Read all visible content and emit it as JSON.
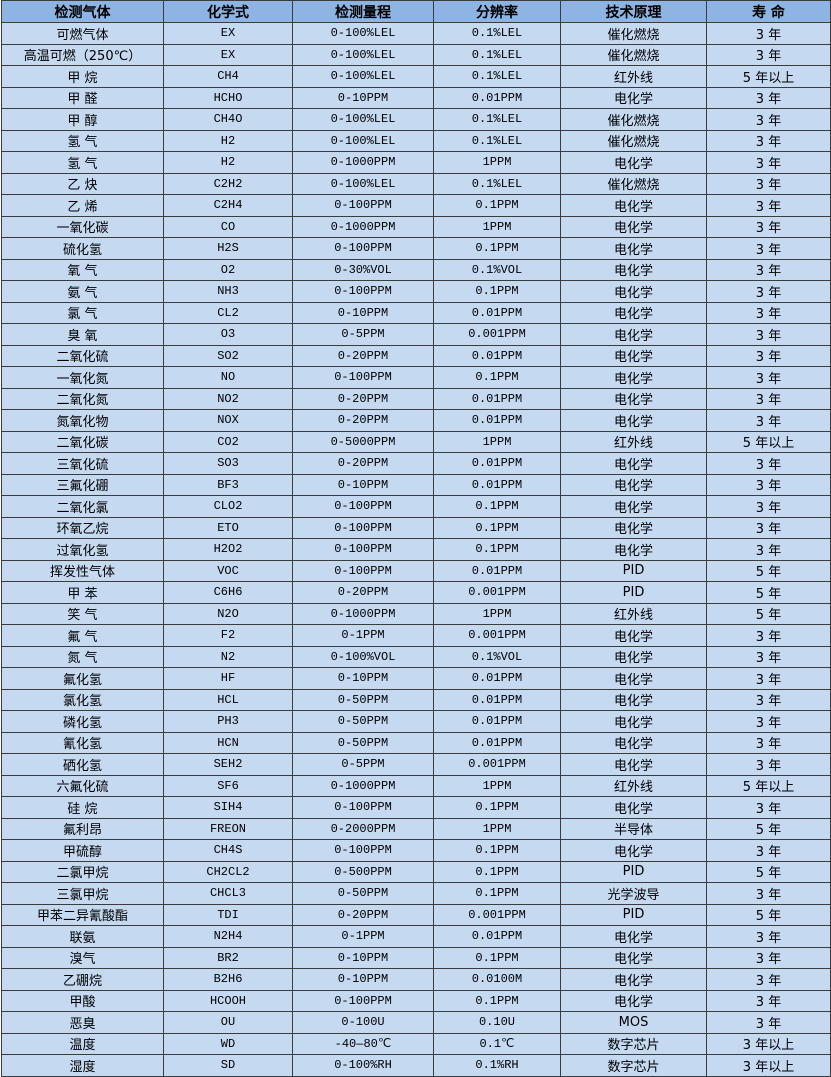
{
  "colors": {
    "header_bg": "#8db4e2",
    "row_bg": "#c5d9f1",
    "border": "#3c3c3c"
  },
  "headers": [
    "检测气体",
    "化学式",
    "检测量程",
    "分辨率",
    "技术原理",
    "寿 命"
  ],
  "rows": [
    [
      "可燃气体",
      "EX",
      "0-100%LEL",
      "0.1%LEL",
      "催化燃烧",
      "3 年"
    ],
    [
      "高温可燃（250℃）",
      "EX",
      "0-100%LEL",
      "0.1%LEL",
      "催化燃烧",
      "3 年"
    ],
    [
      "甲 烷",
      "CH4",
      "0-100%LEL",
      "0.1%LEL",
      "红外线",
      "5 年以上"
    ],
    [
      "甲 醛",
      "HCHO",
      "0-10PPM",
      "0.01PPM",
      "电化学",
      "3 年"
    ],
    [
      "甲 醇",
      "CH4O",
      "0-100%LEL",
      "0.1%LEL",
      "催化燃烧",
      "3 年"
    ],
    [
      "氢 气",
      "H2",
      "0-100%LEL",
      "0.1%LEL",
      "催化燃烧",
      "3 年"
    ],
    [
      "氢 气",
      "H2",
      "0-1000PPM",
      "1PPM",
      "电化学",
      "3 年"
    ],
    [
      "乙 炔",
      "C2H2",
      "0-100%LEL",
      "0.1%LEL",
      "催化燃烧",
      "3 年"
    ],
    [
      "乙 烯",
      "C2H4",
      "0-100PPM",
      "0.1PPM",
      "电化学",
      "3 年"
    ],
    [
      "一氧化碳",
      "CO",
      "0-1000PPM",
      "1PPM",
      "电化学",
      "3 年"
    ],
    [
      "硫化氢",
      "H2S",
      "0-100PPM",
      "0.1PPM",
      "电化学",
      "3 年"
    ],
    [
      "氧 气",
      "O2",
      "0-30%VOL",
      "0.1%VOL",
      "电化学",
      "3 年"
    ],
    [
      "氨 气",
      "NH3",
      "0-100PPM",
      "0.1PPM",
      "电化学",
      "3 年"
    ],
    [
      "氯 气",
      "CL2",
      "0-10PPM",
      "0.01PPM",
      "电化学",
      "3 年"
    ],
    [
      "臭 氧",
      "O3",
      "0-5PPM",
      "0.001PPM",
      "电化学",
      "3 年"
    ],
    [
      "二氧化硫",
      "SO2",
      "0-20PPM",
      "0.01PPM",
      "电化学",
      "3 年"
    ],
    [
      "一氧化氮",
      "NO",
      "0-100PPM",
      "0.1PPM",
      "电化学",
      "3 年"
    ],
    [
      "二氧化氮",
      "NO2",
      "0-20PPM",
      "0.01PPM",
      "电化学",
      "3 年"
    ],
    [
      "氮氧化物",
      "NOX",
      "0-20PPM",
      "0.01PPM",
      "电化学",
      "3 年"
    ],
    [
      "二氧化碳",
      "CO2",
      "0-5000PPM",
      "1PPM",
      "红外线",
      "5 年以上"
    ],
    [
      "三氧化硫",
      "SO3",
      "0-20PPM",
      "0.01PPM",
      "电化学",
      "3 年"
    ],
    [
      "三氟化硼",
      "BF3",
      "0-10PPM",
      "0.01PPM",
      "电化学",
      "3 年"
    ],
    [
      "二氧化氯",
      "CLO2",
      "0-100PPM",
      "0.1PPM",
      "电化学",
      "3 年"
    ],
    [
      "环氧乙烷",
      "ETO",
      "0-100PPM",
      "0.1PPM",
      "电化学",
      "3 年"
    ],
    [
      "过氧化氢",
      "H2O2",
      "0-100PPM",
      "0.1PPM",
      "电化学",
      "3 年"
    ],
    [
      "挥发性气体",
      "VOC",
      "0-100PPM",
      "0.01PPM",
      "PID",
      "5 年"
    ],
    [
      "甲 苯",
      "C6H6",
      "0-20PPM",
      "0.001PPM",
      "PID",
      "5 年"
    ],
    [
      "笑 气",
      "N2O",
      "0-1000PPM",
      "1PPM",
      "红外线",
      "5 年"
    ],
    [
      "氟 气",
      "F2",
      "0-1PPM",
      "0.001PPM",
      "电化学",
      "3 年"
    ],
    [
      "氮 气",
      "N2",
      "0-100%VOL",
      "0.1%VOL",
      "电化学",
      "3 年"
    ],
    [
      "氟化氢",
      "HF",
      "0-10PPM",
      "0.01PPM",
      "电化学",
      "3 年"
    ],
    [
      "氯化氢",
      "HCL",
      "0-50PPM",
      "0.01PPM",
      "电化学",
      "3 年"
    ],
    [
      "磷化氢",
      "PH3",
      "0-50PPM",
      "0.01PPM",
      "电化学",
      "3 年"
    ],
    [
      "氰化氢",
      "HCN",
      "0-50PPM",
      "0.01PPM",
      "电化学",
      "3 年"
    ],
    [
      "硒化氢",
      "SEH2",
      "0-5PPM",
      "0.001PPM",
      "电化学",
      "3 年"
    ],
    [
      "六氟化硫",
      "SF6",
      "0-1000PPM",
      "1PPM",
      "红外线",
      "5 年以上"
    ],
    [
      "硅 烷",
      "SIH4",
      "0-100PPM",
      "0.1PPM",
      "电化学",
      "3 年"
    ],
    [
      "氟利昂",
      "FREON",
      "0-2000PPM",
      "1PPM",
      "半导体",
      "5 年"
    ],
    [
      "甲硫醇",
      "CH4S",
      "0-100PPM",
      "0.1PPM",
      "电化学",
      "3 年"
    ],
    [
      "二氯甲烷",
      "CH2CL2",
      "0-500PPM",
      "0.1PPM",
      "PID",
      "5 年"
    ],
    [
      "三氯甲烷",
      "CHCL3",
      "0-50PPM",
      "0.1PPM",
      "光学波导",
      "3 年"
    ],
    [
      "甲苯二异氰酸酯",
      "TDI",
      "0-20PPM",
      "0.001PPM",
      "PID",
      "5 年"
    ],
    [
      "联氨",
      "N2H4",
      "0-1PPM",
      "0.01PPM",
      "电化学",
      "3 年"
    ],
    [
      "溴气",
      "BR2",
      "0-10PPM",
      "0.1PPM",
      "电化学",
      "3 年"
    ],
    [
      "乙硼烷",
      "B2H6",
      "0-10PPM",
      "0.0100M",
      "电化学",
      "3 年"
    ],
    [
      "甲酸",
      "HCOOH",
      "0-100PPM",
      "0.1PPM",
      "电化学",
      "3 年"
    ],
    [
      "恶臭",
      "OU",
      "0-100U",
      "0.10U",
      "MOS",
      "3 年"
    ],
    [
      "温度",
      "WD",
      "-40—80℃",
      "0.1℃",
      "数字芯片",
      "3 年以上"
    ],
    [
      "湿度",
      "SD",
      "0-100%RH",
      "0.1%RH",
      "数字芯片",
      "3 年以上"
    ]
  ]
}
